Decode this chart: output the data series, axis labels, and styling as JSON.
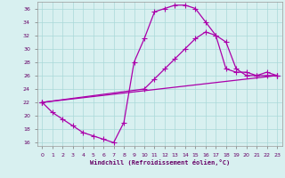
{
  "xlabel": "Windchill (Refroidissement éolien,°C)",
  "background_color": "#d8f0f0",
  "grid_color": "#aad8d8",
  "line_color": "#aa00aa",
  "xlim": [
    -0.5,
    23.5
  ],
  "ylim": [
    15.5,
    37
  ],
  "xticks": [
    0,
    1,
    2,
    3,
    4,
    5,
    6,
    7,
    8,
    9,
    10,
    11,
    12,
    13,
    14,
    15,
    16,
    17,
    18,
    19,
    20,
    21,
    22,
    23
  ],
  "yticks": [
    16,
    18,
    20,
    22,
    24,
    26,
    28,
    30,
    32,
    34,
    36
  ],
  "curve1_x": [
    0,
    1,
    2,
    3,
    4,
    5,
    6,
    7,
    8,
    9,
    10,
    11,
    12,
    13,
    14,
    15,
    16,
    17,
    18,
    19,
    20,
    21,
    22,
    23
  ],
  "curve1_y": [
    22,
    20.5,
    19.5,
    18.5,
    17.5,
    17.0,
    16.5,
    16.0,
    19.0,
    28.0,
    31.5,
    35.5,
    36.0,
    36.5,
    36.5,
    36.0,
    34.0,
    32.0,
    27.0,
    26.5,
    26.5,
    26.0,
    26.0,
    26.0
  ],
  "curve2_x": [
    0,
    10,
    11,
    12,
    13,
    14,
    15,
    16,
    17,
    18,
    19,
    20,
    21,
    22,
    23
  ],
  "curve2_y": [
    22,
    24.0,
    25.5,
    27.0,
    28.5,
    30.0,
    31.5,
    32.5,
    32.0,
    31.0,
    27.0,
    26.0,
    26.0,
    26.5,
    26.0
  ],
  "curve3_x": [
    0,
    23
  ],
  "curve3_y": [
    22,
    26.0
  ]
}
